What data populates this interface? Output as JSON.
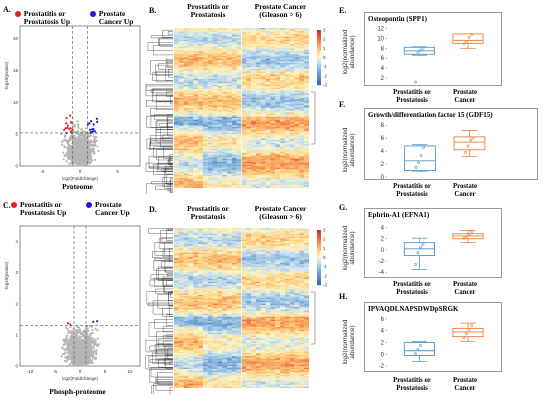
{
  "panel_labels": {
    "A": "A.",
    "B": "B.",
    "C": "C.",
    "D": "D.",
    "E": "E.",
    "F": "F.",
    "G": "G.",
    "H": "H."
  },
  "colors": {
    "red": "#e4201c",
    "blue": "#1b1bd6",
    "gray": "#b5b5b5",
    "box_blue": "#4f97d0",
    "box_orange": "#e6803a"
  },
  "volcano_top": {
    "legend_left": "Prostatitis or\nProstatosis Up",
    "legend_right": "Prostate\nCancer Up",
    "xlabel": "log2(FoldChange)",
    "ylabel": "-log10(pvalue)",
    "section": "Proteome",
    "xticks": [
      "-5",
      "0",
      "5"
    ],
    "yticks": [
      "0",
      "5",
      "10",
      "15",
      "20"
    ]
  },
  "volcano_bottom": {
    "legend_left": "Prostatitis or\nProstatosis Up",
    "legend_right": "Prostate\nCancer Up",
    "xlabel": "log2(FoldChange)",
    "ylabel": "-log10(pvalue)",
    "section": "Phosph-proteome",
    "xticks": [
      "-10",
      "-5",
      "0",
      "5",
      "10"
    ],
    "yticks": [
      "0",
      "1",
      "2",
      "3",
      "4"
    ]
  },
  "heatmap_top": {
    "left_group": "Prostatitis or\nProstatosis",
    "right_group": "Prostate Cancer\n(Gleason > 6)",
    "scale": [
      "3",
      "2",
      "1",
      "0",
      "-1",
      "-2",
      "-3"
    ]
  },
  "heatmap_bottom": {
    "left_group": "Prostatitis or\nProstatosis",
    "right_group": "Prostate Cancer\n(Gleason > 6)",
    "scale": [
      "3",
      "2",
      "1",
      "0",
      "-1",
      "-2",
      "-3"
    ]
  },
  "box_common": {
    "ylabel": "log2(normalized\nabundance)",
    "cat_left": "Prostatitis or\nProstatosis",
    "cat_right": "Prostate\nCancer"
  },
  "chart_data": [
    {
      "type": "box",
      "title": "Osteopontin (SPP1)",
      "yticks": [
        "2",
        "4",
        "6",
        "8",
        "10",
        "12"
      ],
      "ylim": [
        1,
        12.5
      ],
      "series": [
        {
          "name": "Prostatitis or Prostatosis",
          "q1": 6.8,
          "median": 7.5,
          "q3": 8.2,
          "whisker_low": 6.6,
          "whisker_high": 8.3,
          "points": [
            1.2,
            7.2,
            7.6,
            8.0
          ]
        },
        {
          "name": "Prostate Cancer",
          "q1": 9.0,
          "median": 9.6,
          "q3": 10.9,
          "whisker_low": 8.0,
          "whisker_high": 10.9,
          "points": [
            8.9,
            9.4,
            10.2,
            10.8
          ]
        }
      ]
    },
    {
      "type": "box",
      "title": "Growth/differentiation factor 15 (GDF15)",
      "yticks": [
        "0",
        "2",
        "4",
        "6",
        "8"
      ],
      "ylim": [
        0,
        8.5
      ],
      "series": [
        {
          "name": "Prostatitis or Prostatosis",
          "q1": 1.0,
          "median": 2.5,
          "q3": 4.8,
          "whisker_low": 0.9,
          "whisker_high": 5.0,
          "points": [
            1.5,
            2.2,
            3.3,
            4.6
          ]
        },
        {
          "name": "Prostate Cancer",
          "q1": 4.2,
          "median": 5.4,
          "q3": 6.2,
          "whisker_low": 3.2,
          "whisker_high": 7.2,
          "points": [
            3.8,
            4.8,
            5.7,
            6.0
          ]
        }
      ]
    },
    {
      "type": "box",
      "title": "Ephrin-A1 (EFNA1)",
      "yticks": [
        "-4",
        "-2",
        "0",
        "2",
        "4"
      ],
      "ylim": [
        -4.5,
        5
      ],
      "series": [
        {
          "name": "Prostatitis or Prostatosis",
          "q1": -1.0,
          "median": 0.2,
          "q3": 1.3,
          "whisker_low": -3.5,
          "whisker_high": 2.1,
          "points": [
            -2.6,
            -0.5,
            0.5,
            1.0
          ]
        },
        {
          "name": "Prostate Cancer",
          "q1": 2.0,
          "median": 2.5,
          "q3": 2.9,
          "whisker_low": 1.3,
          "whisker_high": 3.5,
          "points": [
            2.1,
            2.4,
            2.8,
            3.2
          ]
        }
      ]
    },
    {
      "type": "box",
      "title": "IPVAQDLNAPSDWDpSRGK",
      "yticks": [
        "-2",
        "0",
        "2",
        "4",
        "6"
      ],
      "ylim": [
        -2.5,
        6.5
      ],
      "series": [
        {
          "name": "Prostatitis or Prostatosis",
          "q1": -0.2,
          "median": 0.6,
          "q3": 2.0,
          "whisker_low": -1.2,
          "whisker_high": 2.2,
          "points": [
            0.1,
            0.8,
            1.5
          ]
        },
        {
          "name": "Prostate Cancer",
          "q1": 3.0,
          "median": 3.8,
          "q3": 4.4,
          "whisker_low": 2.2,
          "whisker_high": 5.3,
          "points": [
            2.8,
            3.5,
            4.2,
            4.9
          ]
        }
      ]
    }
  ]
}
